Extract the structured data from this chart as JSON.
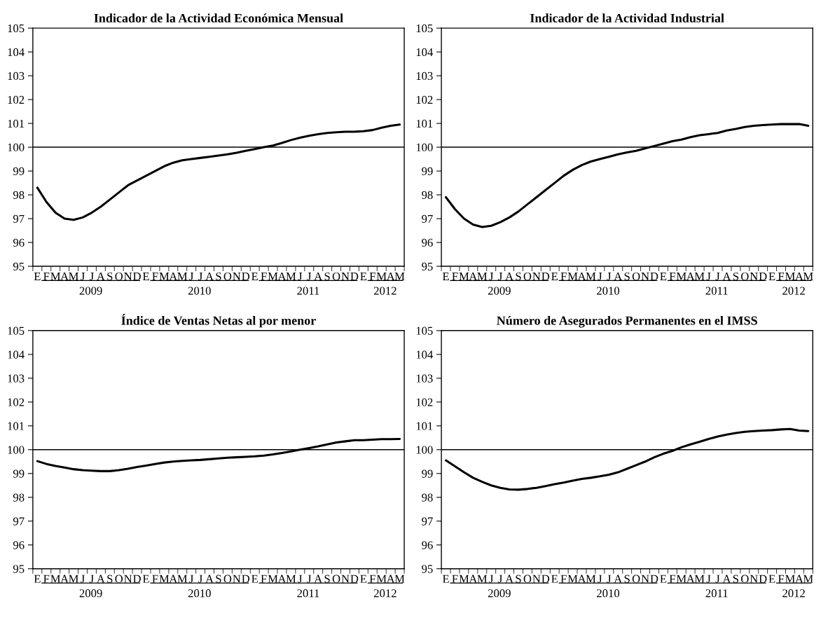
{
  "chart_data": [
    {
      "type": "line",
      "title": "Indicador de la Actividad Económica Mensual",
      "categories": [
        "E",
        "F",
        "M",
        "A",
        "M",
        "J",
        "J",
        "A",
        "S",
        "O",
        "N",
        "D",
        "E",
        "F",
        "M",
        "A",
        "M",
        "J",
        "J",
        "A",
        "S",
        "O",
        "N",
        "D",
        "E",
        "F",
        "M",
        "A",
        "M",
        "J",
        "J",
        "A",
        "S",
        "O",
        "N",
        "D",
        "E",
        "F",
        "M",
        "A",
        "M"
      ],
      "series": [
        {
          "color": "#000000",
          "values": [
            98.3,
            97.7,
            97.25,
            97.0,
            96.95,
            97.05,
            97.25,
            97.5,
            97.8,
            98.1,
            98.4,
            98.6,
            98.8,
            99.0,
            99.2,
            99.35,
            99.45,
            99.5,
            99.55,
            99.6,
            99.65,
            99.7,
            99.77,
            99.85,
            99.92,
            100.0,
            100.07,
            100.18,
            100.3,
            100.4,
            100.48,
            100.55,
            100.6,
            100.63,
            100.65,
            100.65,
            100.67,
            100.72,
            100.82,
            100.9,
            100.95
          ]
        }
      ],
      "ylim": [
        95,
        105
      ],
      "yticks": [
        95,
        96,
        97,
        98,
        99,
        100,
        101,
        102,
        103,
        104,
        105
      ],
      "ref_lines": [
        {
          "axis": "y",
          "value": 100,
          "color": "#000000"
        }
      ],
      "annotations": [
        "2009",
        "2010",
        "2011",
        "2012"
      ]
    },
    {
      "type": "line",
      "title": "Indicador de la Actividad Industrial",
      "categories": [
        "E",
        "F",
        "M",
        "A",
        "M",
        "J",
        "J",
        "A",
        "S",
        "O",
        "N",
        "D",
        "E",
        "F",
        "M",
        "A",
        "M",
        "J",
        "J",
        "A",
        "S",
        "O",
        "N",
        "D",
        "E",
        "F",
        "M",
        "A",
        "M",
        "J",
        "J",
        "A",
        "S",
        "O",
        "N",
        "D",
        "E",
        "F",
        "M",
        "A",
        "M"
      ],
      "series": [
        {
          "color": "#000000",
          "values": [
            97.9,
            97.4,
            97.0,
            96.75,
            96.65,
            96.7,
            96.85,
            97.05,
            97.3,
            97.6,
            97.9,
            98.2,
            98.5,
            98.8,
            99.05,
            99.25,
            99.4,
            99.5,
            99.6,
            99.7,
            99.78,
            99.85,
            99.95,
            100.05,
            100.15,
            100.25,
            100.32,
            100.42,
            100.5,
            100.55,
            100.6,
            100.7,
            100.77,
            100.85,
            100.9,
            100.93,
            100.95,
            100.97,
            100.97,
            100.97,
            100.9
          ]
        }
      ],
      "ylim": [
        95,
        105
      ],
      "yticks": [
        95,
        96,
        97,
        98,
        99,
        100,
        101,
        102,
        103,
        104,
        105
      ],
      "ref_lines": [
        {
          "axis": "y",
          "value": 100,
          "color": "#000000"
        }
      ],
      "annotations": [
        "2009",
        "2010",
        "2011",
        "2012"
      ]
    },
    {
      "type": "line",
      "title": "Índice de Ventas Netas al por menor",
      "categories": [
        "E",
        "F",
        "M",
        "A",
        "M",
        "J",
        "J",
        "A",
        "S",
        "O",
        "N",
        "D",
        "E",
        "F",
        "M",
        "A",
        "M",
        "J",
        "J",
        "A",
        "S",
        "O",
        "N",
        "D",
        "E",
        "F",
        "M",
        "A",
        "M",
        "J",
        "J",
        "A",
        "S",
        "O",
        "N",
        "D",
        "E",
        "F",
        "M",
        "A",
        "M"
      ],
      "series": [
        {
          "color": "#000000",
          "values": [
            99.52,
            99.4,
            99.32,
            99.25,
            99.18,
            99.14,
            99.12,
            99.1,
            99.1,
            99.14,
            99.2,
            99.27,
            99.33,
            99.4,
            99.46,
            99.5,
            99.53,
            99.55,
            99.57,
            99.6,
            99.63,
            99.66,
            99.68,
            99.7,
            99.72,
            99.75,
            99.8,
            99.86,
            99.93,
            100.0,
            100.07,
            100.14,
            100.22,
            100.3,
            100.35,
            100.4,
            100.4,
            100.42,
            100.44,
            100.44,
            100.45
          ]
        }
      ],
      "ylim": [
        95,
        105
      ],
      "yticks": [
        95,
        96,
        97,
        98,
        99,
        100,
        101,
        102,
        103,
        104,
        105
      ],
      "ref_lines": [
        {
          "axis": "y",
          "value": 100,
          "color": "#000000"
        }
      ],
      "annotations": [
        "2009",
        "2010",
        "2011",
        "2012"
      ]
    },
    {
      "type": "line",
      "title": "Número de Asegurados Permanentes en el IMSS",
      "categories": [
        "E",
        "F",
        "M",
        "A",
        "M",
        "J",
        "J",
        "A",
        "S",
        "O",
        "N",
        "D",
        "E",
        "F",
        "M",
        "A",
        "M",
        "J",
        "J",
        "A",
        "S",
        "O",
        "N",
        "D",
        "E",
        "F",
        "M",
        "A",
        "M",
        "J",
        "J",
        "A",
        "S",
        "O",
        "N",
        "D",
        "E",
        "F",
        "M",
        "A",
        "M"
      ],
      "series": [
        {
          "color": "#000000",
          "values": [
            99.55,
            99.3,
            99.05,
            98.82,
            98.65,
            98.5,
            98.4,
            98.33,
            98.32,
            98.35,
            98.4,
            98.47,
            98.55,
            98.62,
            98.7,
            98.77,
            98.82,
            98.88,
            98.95,
            99.05,
            99.2,
            99.35,
            99.5,
            99.68,
            99.83,
            99.95,
            100.1,
            100.22,
            100.33,
            100.45,
            100.55,
            100.63,
            100.7,
            100.75,
            100.78,
            100.8,
            100.82,
            100.85,
            100.87,
            100.8,
            100.78
          ]
        }
      ],
      "ylim": [
        95,
        105
      ],
      "yticks": [
        95,
        96,
        97,
        98,
        99,
        100,
        101,
        102,
        103,
        104,
        105
      ],
      "ref_lines": [
        {
          "axis": "y",
          "value": 100,
          "color": "#000000"
        }
      ],
      "annotations": [
        "2009",
        "2010",
        "2011",
        "2012"
      ]
    }
  ]
}
